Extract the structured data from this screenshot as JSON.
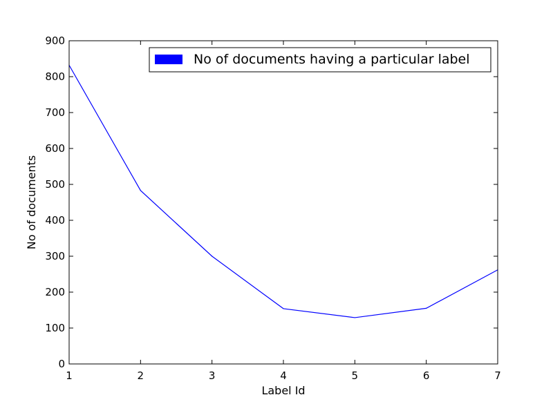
{
  "chart_data": {
    "type": "line",
    "x": [
      1,
      2,
      3,
      4,
      5,
      6,
      7
    ],
    "series": [
      {
        "name": "No of documents having a particular label",
        "values": [
          832,
          483,
          300,
          154,
          129,
          155,
          262
        ],
        "color": "#0000ff"
      }
    ],
    "xlabel": "Label Id",
    "ylabel": "No of documents",
    "xlim": [
      1,
      7
    ],
    "ylim": [
      0,
      900
    ],
    "xticks": [
      1,
      2,
      3,
      4,
      5,
      6,
      7
    ],
    "yticks": [
      0,
      100,
      200,
      300,
      400,
      500,
      600,
      700,
      800,
      900
    ],
    "grid": false,
    "legend_position": "top-right"
  }
}
